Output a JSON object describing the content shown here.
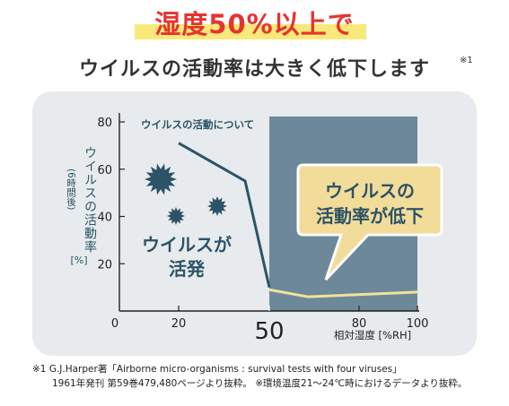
{
  "header": {
    "title_line1": "湿度50%以上で",
    "title_line2": "ウイルスの活動率は大きく低下します",
    "footmark": "※1"
  },
  "chart_data": {
    "type": "line",
    "series": [
      {
        "name": "ウイルスの活動について",
        "x": [
          20,
          42,
          50
        ],
        "y": [
          71,
          55,
          10
        ]
      },
      {
        "x": [
          50,
          63,
          100
        ],
        "y": [
          9,
          6,
          8
        ]
      }
    ],
    "xlabel": "相対湿度 [%RH]",
    "ylabel": "ウイルスの活動率 (6時間後) [%]",
    "x_ticks": [
      "0",
      "20",
      "50",
      "80",
      "100"
    ],
    "y_ticks": [
      "80",
      "60",
      "40",
      "20"
    ],
    "xlim": [
      0,
      100
    ],
    "ylim": [
      0,
      80
    ],
    "shaded_region": {
      "x_from": 50,
      "x_to": 100
    },
    "annotations": {
      "series_label": "ウイルスの活動について",
      "left_line1": "ウイルスが",
      "left_line2": "活発",
      "callout_line1": "ウイルスの",
      "callout_line2": "活動率が低下"
    },
    "ylabel_main": "ウイルスの活動率",
    "ylabel_sub": "(6時間後)",
    "ylabel_unit": "[%]",
    "colors": {
      "line": "#2d5366",
      "low_line": "#f3e29b",
      "shade": "#6d8899",
      "callout": "#f2dc9a",
      "axis": "#222222"
    }
  },
  "footnote": {
    "line1": "※1 G.J.Harper著「Airborne micro-organisms : survival tests with four viruses」",
    "line2": "1961年発刊 第59巻479,480ページより抜粋。 ※環境温度21～24℃時におけるデータより抜粋。"
  }
}
